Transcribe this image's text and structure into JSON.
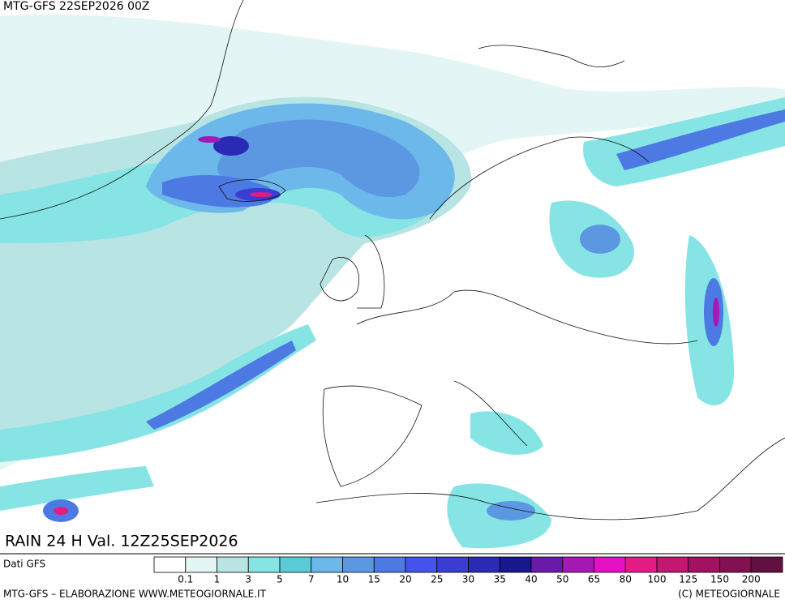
{
  "header": {
    "title": "MTG-GFS 22SEP2026 00Z"
  },
  "map": {
    "caption": "RAIN 24 H Val. 12Z25SEP2026"
  },
  "legend": {
    "source": "Dati GFS",
    "levels": [
      0.1,
      1,
      3,
      5,
      7,
      10,
      15,
      20,
      25,
      30,
      35,
      40,
      50,
      65,
      80,
      100,
      125,
      150,
      200
    ],
    "colors": [
      "#ffffff",
      "#e4f5f5",
      "#b8e4e4",
      "#86e4e4",
      "#5ccbd8",
      "#6cb8ea",
      "#5c98e2",
      "#4c7ae2",
      "#4454ea",
      "#3a3cd2",
      "#2a2ab4",
      "#18188c",
      "#6a1aa8",
      "#a418b4",
      "#e410c4",
      "#e21c84",
      "#c21872",
      "#a21262",
      "#821052",
      "#621042"
    ]
  },
  "footer": {
    "left": "MTG-GFS – ELABORAZIONE WWW.METEOGIORNALE.IT",
    "right": "(C) METEOGIORNALE"
  }
}
